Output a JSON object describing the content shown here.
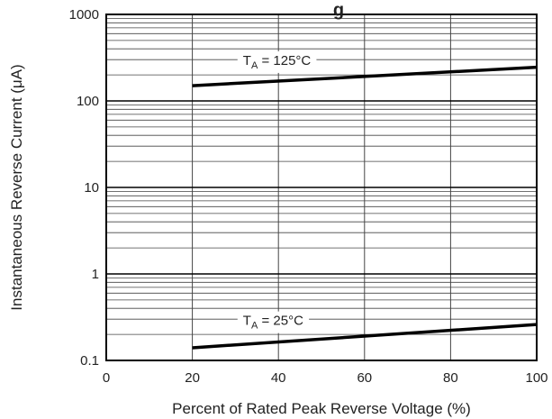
{
  "chart_data": {
    "type": "line",
    "title": "g",
    "xlabel": "Percent of Rated Peak Reverse Voltage (%)",
    "ylabel": "Instantaneous Reverse Current (μA)",
    "xlim": [
      0,
      100
    ],
    "ylim": [
      0.1,
      1000
    ],
    "yscale": "log",
    "grid": true,
    "x_ticks": [
      "0",
      "20",
      "40",
      "60",
      "80",
      "100"
    ],
    "y_ticks": [
      "0.1",
      "1",
      "10",
      "100",
      "1000"
    ],
    "series": [
      {
        "name": "TA = 125°C",
        "label_main": "T",
        "label_sub": "A",
        "label_rest": " = 125°C",
        "x": [
          20,
          100
        ],
        "y": [
          150,
          245
        ]
      },
      {
        "name": "TA = 25°C",
        "label_main": "T",
        "label_sub": "A",
        "label_rest": " = 25°C",
        "x": [
          20,
          100
        ],
        "y": [
          0.14,
          0.26
        ]
      }
    ],
    "colors": {
      "line": "#000000",
      "grid": "#444444",
      "text": "#222222"
    }
  }
}
